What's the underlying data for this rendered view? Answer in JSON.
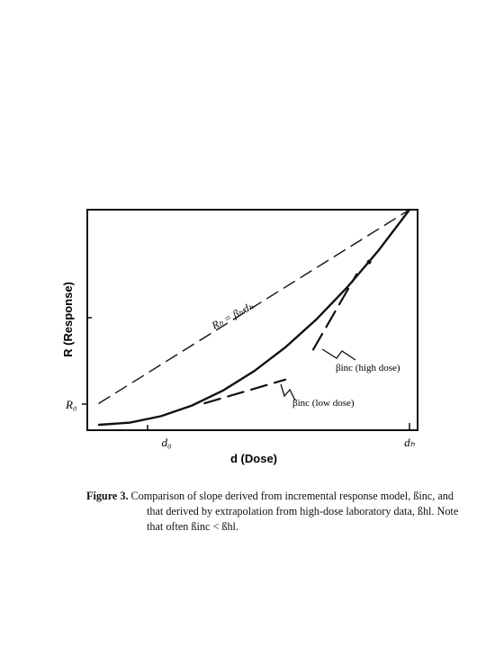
{
  "figure": {
    "chart_data": {
      "type": "line",
      "xlabel": "d (Dose)",
      "ylabel": "R (Response)",
      "x_ticks": [
        "d₀",
        "dₕ"
      ],
      "y_ticks": [
        "R₀"
      ],
      "grid": false,
      "series": [
        {
          "style": "solid curve",
          "x": [
            0,
            0.1,
            0.2,
            0.3,
            0.4,
            0.5,
            0.6,
            0.7,
            0.8,
            0.9,
            1.0
          ],
          "y": [
            0.0,
            0.01,
            0.04,
            0.09,
            0.16,
            0.25,
            0.36,
            0.49,
            0.64,
            0.81,
            1.0
          ]
        },
        {
          "style": "dashed line",
          "x": [
            0,
            1
          ],
          "y": [
            0.1,
            1.0
          ]
        },
        {
          "style": "dashed tangent",
          "x": [
            0.34,
            0.6
          ],
          "y": [
            0.1,
            0.21
          ]
        },
        {
          "style": "dashed tangent",
          "x": [
            0.69,
            0.83
          ],
          "y": [
            0.35,
            0.7
          ]
        }
      ],
      "annotations": {
        "extrapolation_label": "Rₕ = βₕₗdₕ",
        "high_dose_label": "βinc (high dose)",
        "low_dose_label": "βinc (low dose)"
      }
    }
  },
  "caption": {
    "figure_label": "Figure 3.",
    "line1": "Comparison of slope derived from incremental response model, ßinc, and",
    "line2": "that derived by extrapolation from high-dose laboratory data, ßhl. Note",
    "line3": "that often ßinc < ßhl."
  }
}
